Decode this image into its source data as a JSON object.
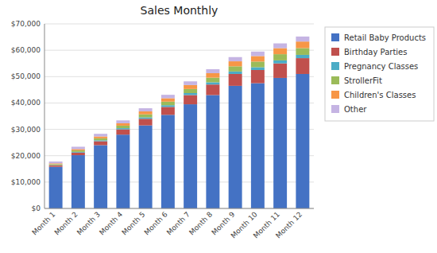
{
  "chart_data": {
    "type": "bar",
    "stacked": true,
    "title": "Sales Monthly",
    "categories": [
      "Month 1",
      "Month 2",
      "Month 3",
      "Month 4",
      "Month 5",
      "Month 6",
      "Month 7",
      "Month 8",
      "Month 9",
      "Month 10",
      "Month 11",
      "Month 12"
    ],
    "series": [
      {
        "name": "Retail Baby Products",
        "color": "#4472C4",
        "values": [
          15800,
          20200,
          24000,
          28000,
          31500,
          35500,
          39500,
          43000,
          46500,
          47500,
          49500,
          51000
        ]
      },
      {
        "name": "Birthday Parties",
        "color": "#C0504D",
        "values": [
          500,
          1000,
          1500,
          2000,
          2500,
          3000,
          3500,
          4000,
          4500,
          5000,
          5500,
          6000
        ]
      },
      {
        "name": "Pregnancy Classes",
        "color": "#4BACC6",
        "values": [
          150,
          250,
          350,
          450,
          550,
          650,
          750,
          850,
          950,
          1050,
          1150,
          1250
        ]
      },
      {
        "name": "StrollerFit",
        "color": "#9BBB59",
        "values": [
          350,
          550,
          750,
          950,
          1150,
          1350,
          1550,
          1750,
          1950,
          2150,
          2350,
          2550
        ]
      },
      {
        "name": "Children's Classes",
        "color": "#F79646",
        "values": [
          300,
          500,
          700,
          900,
          1100,
          1300,
          1500,
          1700,
          1900,
          2100,
          2300,
          2500
        ]
      },
      {
        "name": "Other",
        "color": "#C5B4E3",
        "values": [
          700,
          900,
          1000,
          1100,
          1200,
          1300,
          1400,
          1500,
          1600,
          1700,
          1800,
          1900
        ]
      }
    ],
    "ylim": [
      0,
      70000
    ],
    "yticks": [
      {
        "value": 0,
        "label": "$0"
      },
      {
        "value": 10000,
        "label": "$10,000"
      },
      {
        "value": 20000,
        "label": "$20,000"
      },
      {
        "value": 30000,
        "label": "$30,000"
      },
      {
        "value": 40000,
        "label": "$40,000"
      },
      {
        "value": 50000,
        "label": "$50,000"
      },
      {
        "value": 60000,
        "label": "$60,000"
      },
      {
        "value": 70000,
        "label": "$70,000"
      }
    ],
    "grid": true,
    "legend": "right"
  }
}
